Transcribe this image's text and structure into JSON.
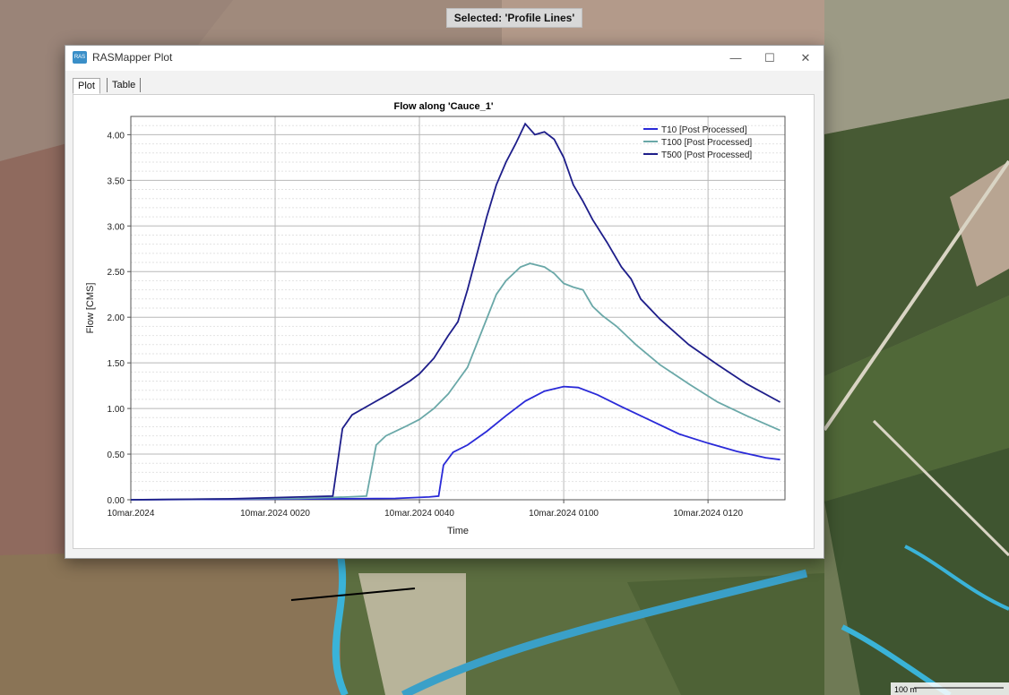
{
  "status": {
    "selected_text": "Selected: 'Profile Lines'"
  },
  "window": {
    "title": "RASMapper Plot",
    "controls": {
      "minimize": "—",
      "maximize": "☐",
      "close": "✕"
    },
    "tabs": [
      {
        "label": "Plot"
      },
      {
        "label": "Table"
      }
    ]
  },
  "map": {
    "scale_label": "100 m"
  },
  "chart_data": {
    "type": "line",
    "title": "Flow along 'Cauce_1'",
    "xlabel": "Time",
    "ylabel": "Flow [CMS]",
    "x_unit": "minutes",
    "xlim": [
      0,
      136
    ],
    "ylim": [
      0,
      4.2
    ],
    "x_ticks": [
      {
        "value": 0,
        "label": "10mar.2024"
      },
      {
        "value": 30,
        "label": "10mar.2024 0020"
      },
      {
        "value": 60,
        "label": "10mar.2024 0040"
      },
      {
        "value": 90,
        "label": "10mar.2024 0100"
      },
      {
        "value": 120,
        "label": "10mar.2024 0120"
      }
    ],
    "y_ticks": [
      "0.00",
      "0.50",
      "1.00",
      "1.50",
      "2.00",
      "2.50",
      "3.00",
      "3.50",
      "4.00"
    ],
    "grid": true,
    "legend_position": "top-right",
    "series": [
      {
        "name": "T10 [Post Processed]",
        "color": "#2a2ad8",
        "points": [
          [
            0,
            0
          ],
          [
            20,
            0.005
          ],
          [
            40,
            0.01
          ],
          [
            55,
            0.015
          ],
          [
            62,
            0.03
          ],
          [
            64,
            0.04
          ],
          [
            65,
            0.38
          ],
          [
            67,
            0.52
          ],
          [
            70,
            0.6
          ],
          [
            74,
            0.75
          ],
          [
            78,
            0.92
          ],
          [
            82,
            1.08
          ],
          [
            86,
            1.19
          ],
          [
            90,
            1.24
          ],
          [
            93,
            1.23
          ],
          [
            97,
            1.15
          ],
          [
            102,
            1.02
          ],
          [
            108,
            0.87
          ],
          [
            114,
            0.72
          ],
          [
            120,
            0.62
          ],
          [
            126,
            0.53
          ],
          [
            132,
            0.46
          ],
          [
            135,
            0.44
          ]
        ]
      },
      {
        "name": "T100 [Post Processed]",
        "color": "#6aa8a8",
        "points": [
          [
            0,
            0
          ],
          [
            20,
            0.01
          ],
          [
            35,
            0.015
          ],
          [
            45,
            0.03
          ],
          [
            49,
            0.04
          ],
          [
            51,
            0.6
          ],
          [
            53,
            0.7
          ],
          [
            57,
            0.8
          ],
          [
            60,
            0.88
          ],
          [
            63,
            1.0
          ],
          [
            66,
            1.16
          ],
          [
            70,
            1.45
          ],
          [
            73,
            1.85
          ],
          [
            76,
            2.25
          ],
          [
            78,
            2.4
          ],
          [
            81,
            2.55
          ],
          [
            83,
            2.59
          ],
          [
            86,
            2.55
          ],
          [
            88,
            2.48
          ],
          [
            90,
            2.37
          ],
          [
            92,
            2.33
          ],
          [
            94,
            2.3
          ],
          [
            96,
            2.12
          ],
          [
            98,
            2.02
          ],
          [
            101,
            1.9
          ],
          [
            105,
            1.7
          ],
          [
            110,
            1.48
          ],
          [
            116,
            1.27
          ],
          [
            122,
            1.07
          ],
          [
            128,
            0.92
          ],
          [
            135,
            0.76
          ]
        ]
      },
      {
        "name": "T500 [Post Processed]",
        "color": "#1e1e8a",
        "points": [
          [
            0,
            0
          ],
          [
            20,
            0.01
          ],
          [
            35,
            0.03
          ],
          [
            42,
            0.04
          ],
          [
            44,
            0.78
          ],
          [
            46,
            0.93
          ],
          [
            50,
            1.05
          ],
          [
            54,
            1.17
          ],
          [
            58,
            1.3
          ],
          [
            60,
            1.38
          ],
          [
            63,
            1.55
          ],
          [
            66,
            1.8
          ],
          [
            68,
            1.95
          ],
          [
            70,
            2.3
          ],
          [
            72,
            2.7
          ],
          [
            74,
            3.1
          ],
          [
            76,
            3.45
          ],
          [
            78,
            3.7
          ],
          [
            80,
            3.9
          ],
          [
            82,
            4.12
          ],
          [
            84,
            4.0
          ],
          [
            86,
            4.03
          ],
          [
            88,
            3.95
          ],
          [
            90,
            3.75
          ],
          [
            92,
            3.45
          ],
          [
            94,
            3.27
          ],
          [
            96,
            3.07
          ],
          [
            99,
            2.82
          ],
          [
            102,
            2.55
          ],
          [
            104,
            2.42
          ],
          [
            106,
            2.2
          ],
          [
            110,
            1.98
          ],
          [
            116,
            1.7
          ],
          [
            122,
            1.48
          ],
          [
            128,
            1.27
          ],
          [
            135,
            1.07
          ]
        ]
      }
    ]
  }
}
